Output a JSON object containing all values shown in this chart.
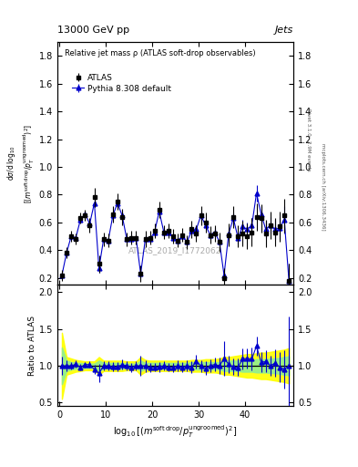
{
  "title_top": "13000 GeV pp",
  "title_right": "Jets",
  "plot_title": "Relative jet mass ρ (ATLAS soft-drop observables)",
  "watermark": "ATLAS_2019_I1772062",
  "right_label": "Rivet 3.1.0,  2.9M events",
  "right_label2": "mcplots.cern.ch [arXiv:1306.3436]",
  "legend_atlas": "ATLAS",
  "legend_pythia": "Pythia 8.308 default",
  "x_data": [
    0.5,
    1.5,
    2.5,
    3.5,
    4.5,
    5.5,
    6.5,
    7.5,
    8.5,
    9.5,
    10.5,
    11.5,
    12.5,
    13.5,
    14.5,
    15.5,
    16.5,
    17.5,
    18.5,
    19.5,
    20.5,
    21.5,
    22.5,
    23.5,
    24.5,
    25.5,
    26.5,
    27.5,
    28.5,
    29.5,
    30.5,
    31.5,
    32.5,
    33.5,
    34.5,
    35.5,
    36.5,
    37.5,
    38.5,
    39.5,
    40.5,
    41.5,
    42.5,
    43.5,
    44.5,
    45.5,
    46.5,
    47.5,
    48.5,
    49.5
  ],
  "atlas_y": [
    0.22,
    0.38,
    0.5,
    0.48,
    0.63,
    0.65,
    0.58,
    0.78,
    0.3,
    0.48,
    0.47,
    0.66,
    0.75,
    0.64,
    0.48,
    0.49,
    0.49,
    0.23,
    0.48,
    0.49,
    0.54,
    0.69,
    0.53,
    0.54,
    0.5,
    0.47,
    0.51,
    0.46,
    0.55,
    0.52,
    0.65,
    0.6,
    0.51,
    0.52,
    0.46,
    0.2,
    0.51,
    0.64,
    0.5,
    0.52,
    0.5,
    0.53,
    0.64,
    0.63,
    0.52,
    0.58,
    0.53,
    0.57,
    0.65,
    0.18
  ],
  "atlas_yerr": [
    0.04,
    0.04,
    0.04,
    0.04,
    0.04,
    0.04,
    0.05,
    0.07,
    0.06,
    0.05,
    0.05,
    0.06,
    0.06,
    0.06,
    0.05,
    0.05,
    0.05,
    0.06,
    0.06,
    0.05,
    0.05,
    0.06,
    0.05,
    0.05,
    0.05,
    0.05,
    0.05,
    0.05,
    0.06,
    0.06,
    0.07,
    0.07,
    0.06,
    0.06,
    0.07,
    0.07,
    0.08,
    0.08,
    0.08,
    0.09,
    0.09,
    0.1,
    0.1,
    0.1,
    0.1,
    0.1,
    0.1,
    0.11,
    0.12,
    0.12
  ],
  "pythia_y": [
    0.22,
    0.38,
    0.5,
    0.49,
    0.62,
    0.66,
    0.59,
    0.74,
    0.27,
    0.48,
    0.47,
    0.65,
    0.74,
    0.65,
    0.48,
    0.48,
    0.49,
    0.23,
    0.48,
    0.48,
    0.53,
    0.68,
    0.53,
    0.53,
    0.49,
    0.47,
    0.5,
    0.46,
    0.54,
    0.55,
    0.65,
    0.58,
    0.51,
    0.53,
    0.46,
    0.22,
    0.52,
    0.63,
    0.49,
    0.57,
    0.55,
    0.58,
    0.81,
    0.66,
    0.55,
    0.58,
    0.55,
    0.56,
    0.62,
    0.18
  ],
  "pythia_yerr": [
    0.02,
    0.02,
    0.02,
    0.02,
    0.02,
    0.02,
    0.02,
    0.03,
    0.03,
    0.02,
    0.02,
    0.03,
    0.03,
    0.03,
    0.02,
    0.02,
    0.02,
    0.03,
    0.03,
    0.02,
    0.02,
    0.03,
    0.02,
    0.02,
    0.02,
    0.02,
    0.02,
    0.02,
    0.03,
    0.03,
    0.03,
    0.03,
    0.03,
    0.03,
    0.03,
    0.04,
    0.04,
    0.04,
    0.04,
    0.05,
    0.05,
    0.05,
    0.06,
    0.06,
    0.06,
    0.06,
    0.07,
    0.08,
    0.1,
    0.12
  ],
  "ratio_y": [
    1.0,
    1.0,
    1.0,
    1.02,
    0.98,
    1.015,
    1.017,
    0.95,
    0.9,
    1.0,
    1.0,
    0.985,
    0.987,
    1.016,
    1.0,
    0.98,
    1.0,
    1.0,
    1.0,
    0.98,
    0.981,
    0.986,
    1.0,
    0.981,
    0.98,
    1.0,
    0.98,
    1.0,
    0.982,
    1.058,
    1.0,
    0.967,
    1.0,
    1.019,
    1.0,
    1.1,
    1.02,
    0.984,
    0.98,
    1.096,
    1.1,
    1.094,
    1.27,
    1.048,
    1.058,
    1.0,
    1.038,
    0.982,
    0.954,
    1.0
  ],
  "ratio_yerr": [
    0.12,
    0.07,
    0.05,
    0.05,
    0.04,
    0.04,
    0.04,
    0.06,
    0.12,
    0.06,
    0.06,
    0.06,
    0.06,
    0.07,
    0.06,
    0.06,
    0.06,
    0.14,
    0.08,
    0.06,
    0.06,
    0.07,
    0.06,
    0.06,
    0.06,
    0.07,
    0.07,
    0.07,
    0.08,
    0.09,
    0.08,
    0.09,
    0.09,
    0.09,
    0.11,
    0.23,
    0.12,
    0.11,
    0.12,
    0.14,
    0.14,
    0.15,
    0.13,
    0.14,
    0.15,
    0.14,
    0.18,
    0.21,
    0.26,
    0.67
  ],
  "band_yellow_lo": [
    0.55,
    0.88,
    0.9,
    0.92,
    0.93,
    0.94,
    0.94,
    0.94,
    0.88,
    0.93,
    0.93,
    0.93,
    0.93,
    0.93,
    0.94,
    0.94,
    0.94,
    0.88,
    0.92,
    0.93,
    0.93,
    0.93,
    0.93,
    0.93,
    0.93,
    0.93,
    0.93,
    0.93,
    0.92,
    0.92,
    0.92,
    0.91,
    0.91,
    0.91,
    0.9,
    0.88,
    0.88,
    0.87,
    0.86,
    0.85,
    0.84,
    0.84,
    0.83,
    0.82,
    0.82,
    0.81,
    0.8,
    0.79,
    0.78,
    0.76
  ],
  "band_yellow_hi": [
    1.45,
    1.12,
    1.1,
    1.08,
    1.07,
    1.06,
    1.06,
    1.06,
    1.12,
    1.07,
    1.07,
    1.07,
    1.07,
    1.07,
    1.06,
    1.06,
    1.06,
    1.12,
    1.08,
    1.07,
    1.07,
    1.07,
    1.07,
    1.07,
    1.07,
    1.07,
    1.07,
    1.07,
    1.08,
    1.08,
    1.08,
    1.09,
    1.09,
    1.09,
    1.1,
    1.12,
    1.12,
    1.13,
    1.14,
    1.15,
    1.16,
    1.16,
    1.17,
    1.18,
    1.18,
    1.19,
    1.2,
    1.21,
    1.22,
    1.24
  ],
  "band_green_lo": [
    0.75,
    0.93,
    0.95,
    0.96,
    0.96,
    0.97,
    0.97,
    0.97,
    0.93,
    0.96,
    0.96,
    0.96,
    0.96,
    0.96,
    0.97,
    0.97,
    0.97,
    0.93,
    0.96,
    0.96,
    0.96,
    0.96,
    0.96,
    0.96,
    0.96,
    0.96,
    0.96,
    0.96,
    0.96,
    0.95,
    0.95,
    0.95,
    0.95,
    0.95,
    0.95,
    0.93,
    0.93,
    0.93,
    0.93,
    0.92,
    0.92,
    0.92,
    0.91,
    0.91,
    0.91,
    0.9,
    0.9,
    0.89,
    0.88,
    0.87
  ],
  "band_green_hi": [
    1.25,
    1.07,
    1.05,
    1.04,
    1.04,
    1.03,
    1.03,
    1.03,
    1.07,
    1.04,
    1.04,
    1.04,
    1.04,
    1.04,
    1.03,
    1.03,
    1.03,
    1.07,
    1.04,
    1.04,
    1.04,
    1.04,
    1.04,
    1.04,
    1.04,
    1.04,
    1.04,
    1.04,
    1.05,
    1.05,
    1.05,
    1.05,
    1.05,
    1.05,
    1.05,
    1.07,
    1.07,
    1.07,
    1.07,
    1.08,
    1.08,
    1.08,
    1.09,
    1.09,
    1.09,
    1.1,
    1.1,
    1.11,
    1.12,
    1.13
  ],
  "atlas_color": "#000000",
  "pythia_color": "#0000cc",
  "ylim_main": [
    0.15,
    1.9
  ],
  "ylim_ratio": [
    0.45,
    2.1
  ],
  "yticks_main": [
    0.2,
    0.4,
    0.6,
    0.8,
    1.0,
    1.2,
    1.4,
    1.6,
    1.8
  ],
  "yticks_ratio": [
    0.5,
    1.0,
    1.5,
    2.0
  ],
  "xlim": [
    -0.5,
    50.5
  ],
  "xticks": [
    0,
    10,
    20,
    30,
    40
  ]
}
